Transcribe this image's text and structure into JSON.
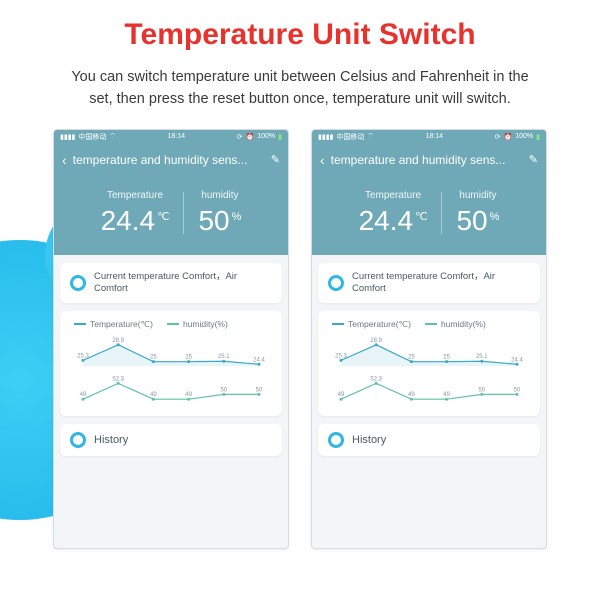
{
  "title": "Temperature Unit Switch",
  "subtitle": "You can switch temperature unit between Celsius and Fahrenheit in the set, then press the reset button once, temperature unit will switch.",
  "phone": {
    "statusbar": {
      "carrier": "中国移动",
      "time": "18:14",
      "battery": "100%"
    },
    "header": {
      "title": "temperature and humidity sens..."
    },
    "readings": {
      "temp_label": "Temperature",
      "temp_value": "24.4",
      "temp_unit": "℃",
      "hum_label": "humidity",
      "hum_value": "50",
      "hum_unit": "%"
    },
    "comfort": "Current temperature Comfort，Air Comfort",
    "chart": {
      "legend_temp": "Temperature(℃)",
      "legend_hum": "humidity(%)",
      "temp_color": "#3aa8c9",
      "hum_color": "#5fc3a8",
      "temp_series": [
        {
          "x": 0,
          "y": 25.3,
          "label": "25.3"
        },
        {
          "x": 1,
          "y": 28.9,
          "label": "28.9"
        },
        {
          "x": 2,
          "y": 25,
          "label": "25"
        },
        {
          "x": 3,
          "y": 25,
          "label": "25"
        },
        {
          "x": 4,
          "y": 25.1,
          "label": "25.1"
        },
        {
          "x": 5,
          "y": 24.4,
          "label": "24.4"
        }
      ],
      "hum_series": [
        {
          "x": 0,
          "y": 49,
          "label": "49"
        },
        {
          "x": 1,
          "y": 52.3,
          "label": "52.3"
        },
        {
          "x": 2,
          "y": 49,
          "label": "49"
        },
        {
          "x": 3,
          "y": 49,
          "label": "49"
        },
        {
          "x": 4,
          "y": 50,
          "label": "50"
        },
        {
          "x": 5,
          "y": 50,
          "label": "50"
        }
      ]
    },
    "history_label": "History"
  },
  "colors": {
    "brand_red": "#e8322d",
    "phone_teal": "#6fa9b8",
    "accent_blue": "#2fb7e6"
  }
}
